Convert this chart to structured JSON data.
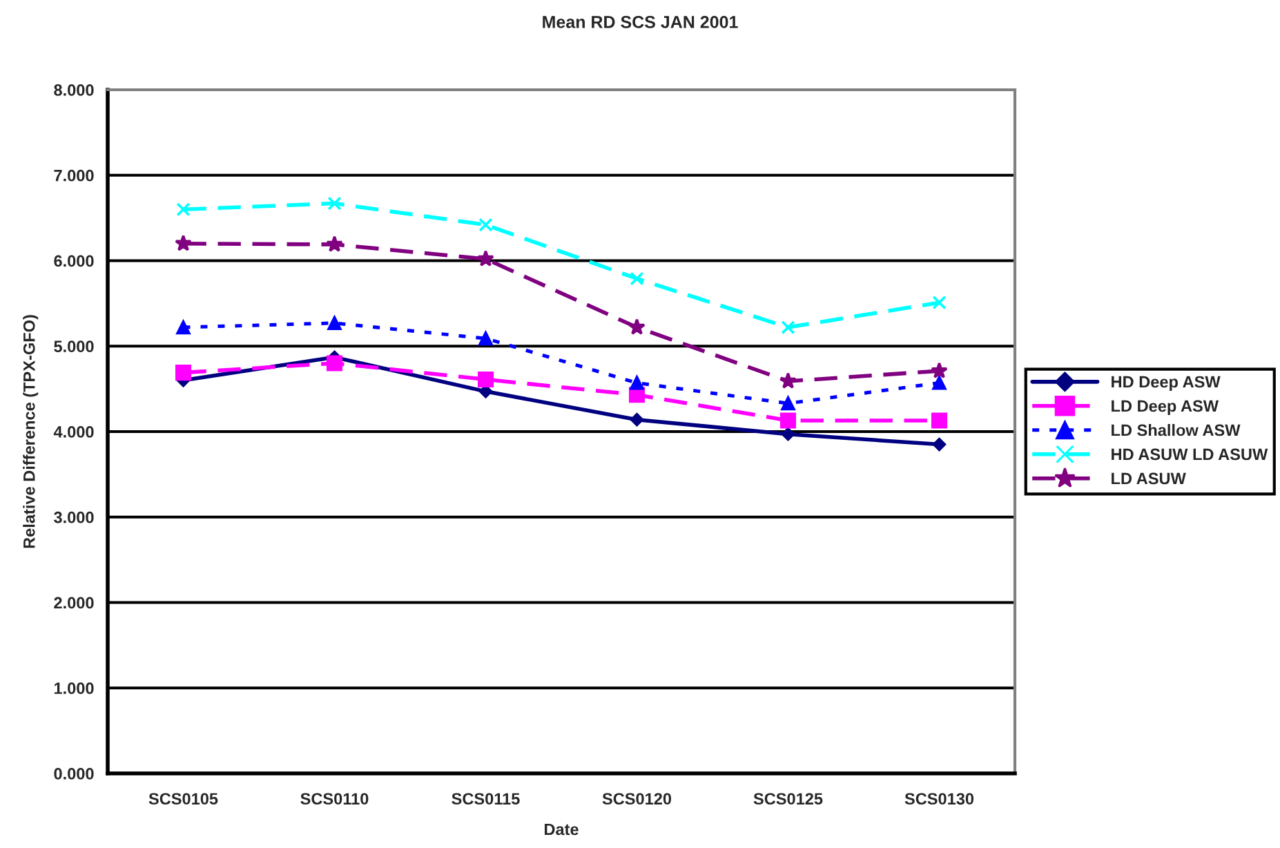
{
  "chart_data": {
    "type": "line",
    "title": "Mean RD SCS JAN 2001",
    "xlabel": "Date",
    "ylabel": "Relative Difference (TPX-GFO)",
    "categories": [
      "SCS0105",
      "SCS0110",
      "SCS0115",
      "SCS0120",
      "SCS0125",
      "SCS0130"
    ],
    "series": [
      {
        "name": "HD Deep ASW",
        "color": "#000080",
        "marker": "diamond",
        "line_style": "solid",
        "values": [
          4.6,
          4.87,
          4.47,
          4.14,
          3.97,
          3.85
        ]
      },
      {
        "name": "LD Deep ASW",
        "color": "#ff00ff",
        "marker": "square",
        "line_style": "dashed",
        "values": [
          4.69,
          4.8,
          4.61,
          4.43,
          4.13,
          4.13
        ]
      },
      {
        "name": "LD Shallow ASW",
        "color": "#0000ff",
        "marker": "triangle",
        "line_style": "dotted",
        "values": [
          5.22,
          5.27,
          5.09,
          4.57,
          4.33,
          4.57
        ]
      },
      {
        "name": "HD ASUW LD ASUW",
        "color": "#00ffff",
        "marker": "cross",
        "line_style": "dashed",
        "values": [
          6.6,
          6.67,
          6.42,
          5.79,
          5.22,
          5.51
        ]
      },
      {
        "name": "LD ASUW",
        "color": "#800080",
        "marker": "star",
        "line_style": "dashed",
        "values": [
          6.2,
          6.19,
          6.02,
          5.22,
          4.59,
          4.71
        ]
      }
    ],
    "ylim": [
      0,
      8
    ],
    "yticks": [
      {
        "value": 0,
        "label": "0.000"
      },
      {
        "value": 1,
        "label": "1.000"
      },
      {
        "value": 2,
        "label": "2.000"
      },
      {
        "value": 3,
        "label": "3.000"
      },
      {
        "value": 4,
        "label": "4.000"
      },
      {
        "value": 5,
        "label": "5.000"
      },
      {
        "value": 6,
        "label": "6.000"
      },
      {
        "value": 7,
        "label": "7.000"
      },
      {
        "value": 8,
        "label": "8.000"
      }
    ],
    "grid": "y",
    "legend": "right"
  }
}
